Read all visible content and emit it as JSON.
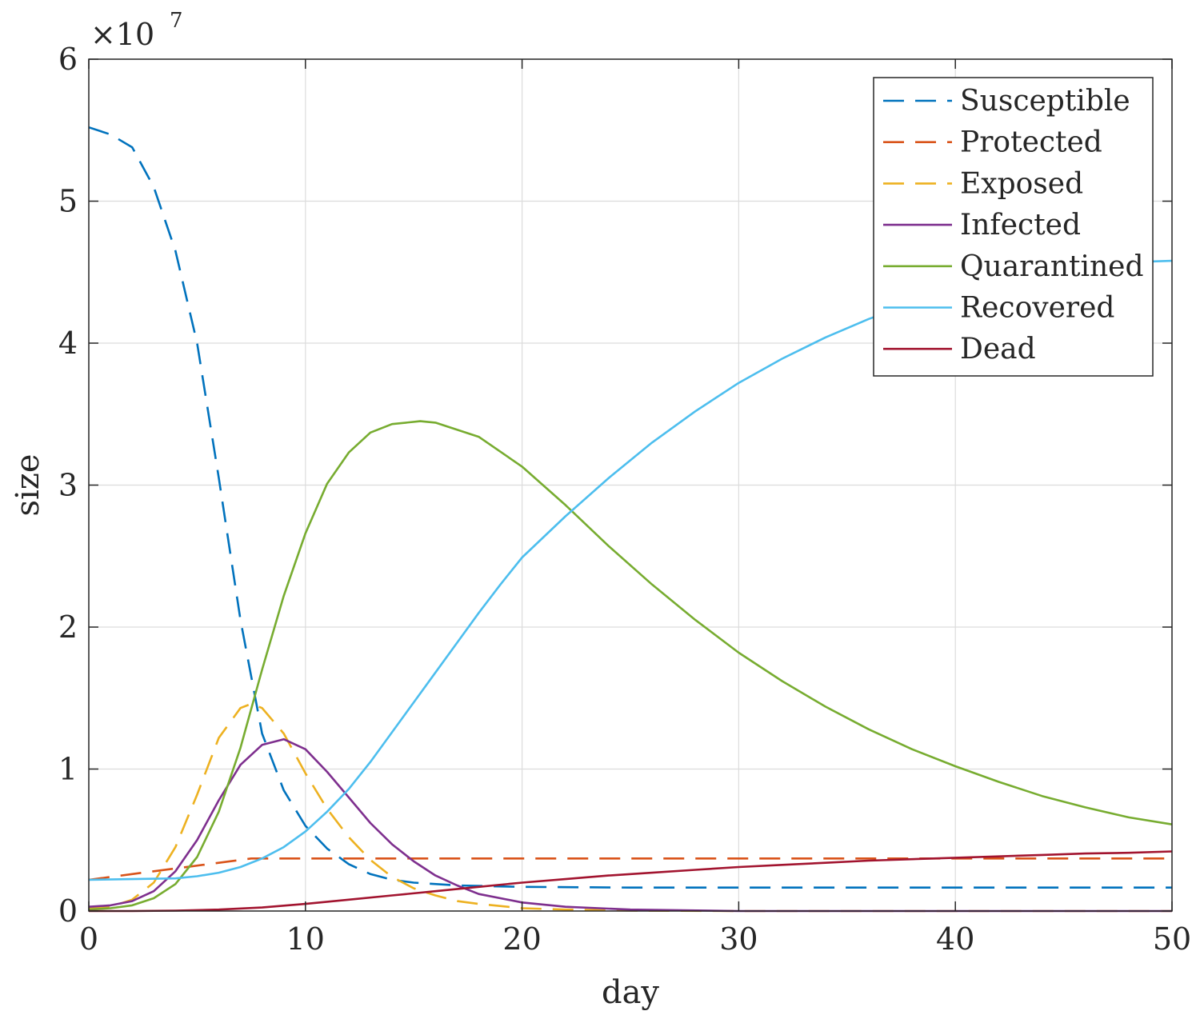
{
  "chart_data": {
    "type": "line",
    "xlabel": "day",
    "ylabel": "size",
    "y_multiplier_label": "×10",
    "y_multiplier_exponent": "7",
    "xlim": [
      0,
      50
    ],
    "ylim": [
      0,
      6
    ],
    "x_ticks": [
      "0",
      "10",
      "20",
      "30",
      "40",
      "50"
    ],
    "y_ticks": [
      "0",
      "1",
      "2",
      "3",
      "4",
      "5",
      "6"
    ],
    "grid": true,
    "legend_position": "top-right",
    "y_unit_note": "values in units of 10^7",
    "series": [
      {
        "name": "Susceptible",
        "color": "#0072BD",
        "dash": true,
        "points": [
          [
            0,
            5.52
          ],
          [
            1,
            5.47
          ],
          [
            2,
            5.38
          ],
          [
            3,
            5.1
          ],
          [
            4,
            4.65
          ],
          [
            5,
            4.0
          ],
          [
            6,
            3.05
          ],
          [
            7,
            2.05
          ],
          [
            8,
            1.25
          ],
          [
            9,
            0.85
          ],
          [
            10,
            0.6
          ],
          [
            11,
            0.44
          ],
          [
            12,
            0.33
          ],
          [
            13,
            0.26
          ],
          [
            14,
            0.22
          ],
          [
            15,
            0.2
          ],
          [
            17,
            0.18
          ],
          [
            20,
            0.17
          ],
          [
            25,
            0.165
          ],
          [
            30,
            0.165
          ],
          [
            40,
            0.165
          ],
          [
            50,
            0.165
          ]
        ]
      },
      {
        "name": "Protected",
        "color": "#D95319",
        "dash": true,
        "points": [
          [
            0,
            0.22
          ],
          [
            2,
            0.26
          ],
          [
            4,
            0.3
          ],
          [
            6,
            0.34
          ],
          [
            7.5,
            0.37
          ],
          [
            8,
            0.37
          ],
          [
            10,
            0.37
          ],
          [
            15,
            0.37
          ],
          [
            20,
            0.37
          ],
          [
            30,
            0.37
          ],
          [
            40,
            0.37
          ],
          [
            50,
            0.37
          ]
        ]
      },
      {
        "name": "Exposed",
        "color": "#EDB120",
        "dash": true,
        "points": [
          [
            0,
            0.02
          ],
          [
            1,
            0.03
          ],
          [
            2,
            0.08
          ],
          [
            3,
            0.2
          ],
          [
            4,
            0.45
          ],
          [
            5,
            0.82
          ],
          [
            6,
            1.22
          ],
          [
            7,
            1.43
          ],
          [
            7.5,
            1.46
          ],
          [
            8,
            1.43
          ],
          [
            9,
            1.25
          ],
          [
            10,
            0.97
          ],
          [
            11,
            0.72
          ],
          [
            12,
            0.52
          ],
          [
            13,
            0.36
          ],
          [
            14,
            0.24
          ],
          [
            15,
            0.16
          ],
          [
            16,
            0.11
          ],
          [
            17,
            0.07
          ],
          [
            18,
            0.05
          ],
          [
            20,
            0.02
          ],
          [
            22,
            0.01
          ],
          [
            25,
            0.003
          ],
          [
            30,
            0.0
          ],
          [
            40,
            0.0
          ],
          [
            50,
            0.0
          ]
        ]
      },
      {
        "name": "Infected",
        "color": "#7E2F8E",
        "dash": false,
        "points": [
          [
            0,
            0.03
          ],
          [
            1,
            0.04
          ],
          [
            2,
            0.07
          ],
          [
            3,
            0.14
          ],
          [
            4,
            0.28
          ],
          [
            5,
            0.5
          ],
          [
            6,
            0.78
          ],
          [
            7,
            1.03
          ],
          [
            8,
            1.17
          ],
          [
            9,
            1.21
          ],
          [
            10,
            1.14
          ],
          [
            11,
            0.98
          ],
          [
            12,
            0.8
          ],
          [
            13,
            0.62
          ],
          [
            14,
            0.47
          ],
          [
            15,
            0.35
          ],
          [
            16,
            0.25
          ],
          [
            17,
            0.18
          ],
          [
            18,
            0.12
          ],
          [
            20,
            0.06
          ],
          [
            22,
            0.03
          ],
          [
            25,
            0.01
          ],
          [
            30,
            0.0
          ],
          [
            40,
            0.0
          ],
          [
            50,
            0.0
          ]
        ]
      },
      {
        "name": "Quarantined",
        "color": "#77AC30",
        "dash": false,
        "points": [
          [
            0,
            0.01
          ],
          [
            1,
            0.02
          ],
          [
            2,
            0.04
          ],
          [
            3,
            0.09
          ],
          [
            4,
            0.19
          ],
          [
            5,
            0.38
          ],
          [
            6,
            0.7
          ],
          [
            7,
            1.15
          ],
          [
            8,
            1.7
          ],
          [
            9,
            2.22
          ],
          [
            10,
            2.66
          ],
          [
            11,
            3.01
          ],
          [
            12,
            3.23
          ],
          [
            13,
            3.37
          ],
          [
            14,
            3.43
          ],
          [
            15.3,
            3.45
          ],
          [
            16,
            3.44
          ],
          [
            18,
            3.34
          ],
          [
            20,
            3.13
          ],
          [
            22,
            2.86
          ],
          [
            24,
            2.57
          ],
          [
            26,
            2.3
          ],
          [
            28,
            2.05
          ],
          [
            30,
            1.82
          ],
          [
            32,
            1.62
          ],
          [
            34,
            1.44
          ],
          [
            36,
            1.28
          ],
          [
            38,
            1.14
          ],
          [
            40,
            1.02
          ],
          [
            42,
            0.91
          ],
          [
            44,
            0.81
          ],
          [
            46,
            0.73
          ],
          [
            48,
            0.66
          ],
          [
            50,
            0.61
          ]
        ]
      },
      {
        "name": "Recovered",
        "color": "#4DBEEE",
        "dash": false,
        "points": [
          [
            0,
            0.22
          ],
          [
            2,
            0.225
          ],
          [
            4,
            0.23
          ],
          [
            5,
            0.245
          ],
          [
            6,
            0.27
          ],
          [
            7,
            0.31
          ],
          [
            8,
            0.37
          ],
          [
            9,
            0.45
          ],
          [
            10,
            0.56
          ],
          [
            11,
            0.7
          ],
          [
            12,
            0.86
          ],
          [
            13,
            1.05
          ],
          [
            14,
            1.26
          ],
          [
            15,
            1.47
          ],
          [
            16,
            1.68
          ],
          [
            17,
            1.89
          ],
          [
            18,
            2.1
          ],
          [
            19,
            2.3
          ],
          [
            20,
            2.49
          ],
          [
            22,
            2.78
          ],
          [
            24,
            3.05
          ],
          [
            26,
            3.3
          ],
          [
            28,
            3.52
          ],
          [
            30,
            3.72
          ],
          [
            32,
            3.89
          ],
          [
            34,
            4.04
          ],
          [
            36,
            4.17
          ],
          [
            38,
            4.28
          ],
          [
            40,
            4.37
          ],
          [
            42,
            4.44
          ],
          [
            44,
            4.5
          ],
          [
            46,
            4.54
          ],
          [
            48,
            4.57
          ],
          [
            50,
            4.58
          ]
        ]
      },
      {
        "name": "Dead",
        "color": "#A2142F",
        "dash": false,
        "points": [
          [
            0,
            0.0
          ],
          [
            2,
            0.0
          ],
          [
            4,
            0.003
          ],
          [
            6,
            0.01
          ],
          [
            8,
            0.025
          ],
          [
            10,
            0.05
          ],
          [
            12,
            0.08
          ],
          [
            14,
            0.11
          ],
          [
            16,
            0.14
          ],
          [
            18,
            0.17
          ],
          [
            20,
            0.2
          ],
          [
            22,
            0.225
          ],
          [
            24,
            0.25
          ],
          [
            26,
            0.27
          ],
          [
            28,
            0.29
          ],
          [
            30,
            0.31
          ],
          [
            32,
            0.325
          ],
          [
            34,
            0.34
          ],
          [
            36,
            0.355
          ],
          [
            38,
            0.365
          ],
          [
            40,
            0.375
          ],
          [
            42,
            0.385
          ],
          [
            44,
            0.395
          ],
          [
            46,
            0.405
          ],
          [
            48,
            0.41
          ],
          [
            50,
            0.42
          ]
        ]
      }
    ]
  }
}
